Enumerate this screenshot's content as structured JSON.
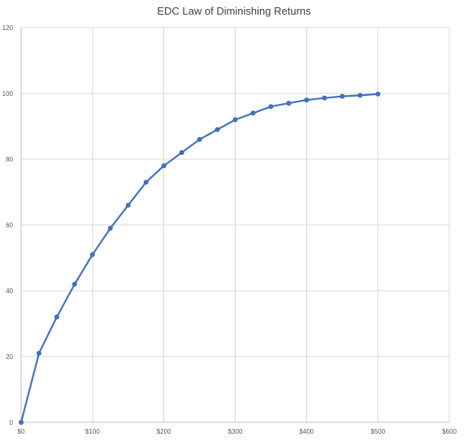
{
  "chart_data": {
    "type": "scatter",
    "title": "EDC Law of Diminishing Returns",
    "xlabel": "",
    "ylabel": "",
    "xlim": [
      0,
      600
    ],
    "ylim": [
      0,
      120
    ],
    "x_ticks": [
      0,
      100,
      200,
      300,
      400,
      500,
      600
    ],
    "x_tick_labels": [
      "$0",
      "$100",
      "$200",
      "$300",
      "$400",
      "$500",
      "$600"
    ],
    "y_ticks": [
      0,
      20,
      40,
      60,
      80,
      100,
      120
    ],
    "y_tick_labels": [
      "0",
      "20",
      "40",
      "60",
      "80",
      "100",
      "120"
    ],
    "grid": true,
    "legend": "none",
    "line": "straight with markers",
    "color": "#4472c4",
    "series": [
      {
        "x": [
          0,
          25,
          50,
          75,
          100,
          125,
          150,
          175,
          200,
          225,
          250,
          275,
          300,
          325,
          350,
          375,
          400,
          425,
          450,
          475,
          500
        ],
        "y": [
          0,
          21,
          32,
          42,
          51,
          59,
          66,
          73,
          78,
          82,
          86,
          89,
          92,
          94,
          96,
          97,
          98,
          98.6,
          99.1,
          99.4,
          99.8
        ]
      }
    ]
  }
}
